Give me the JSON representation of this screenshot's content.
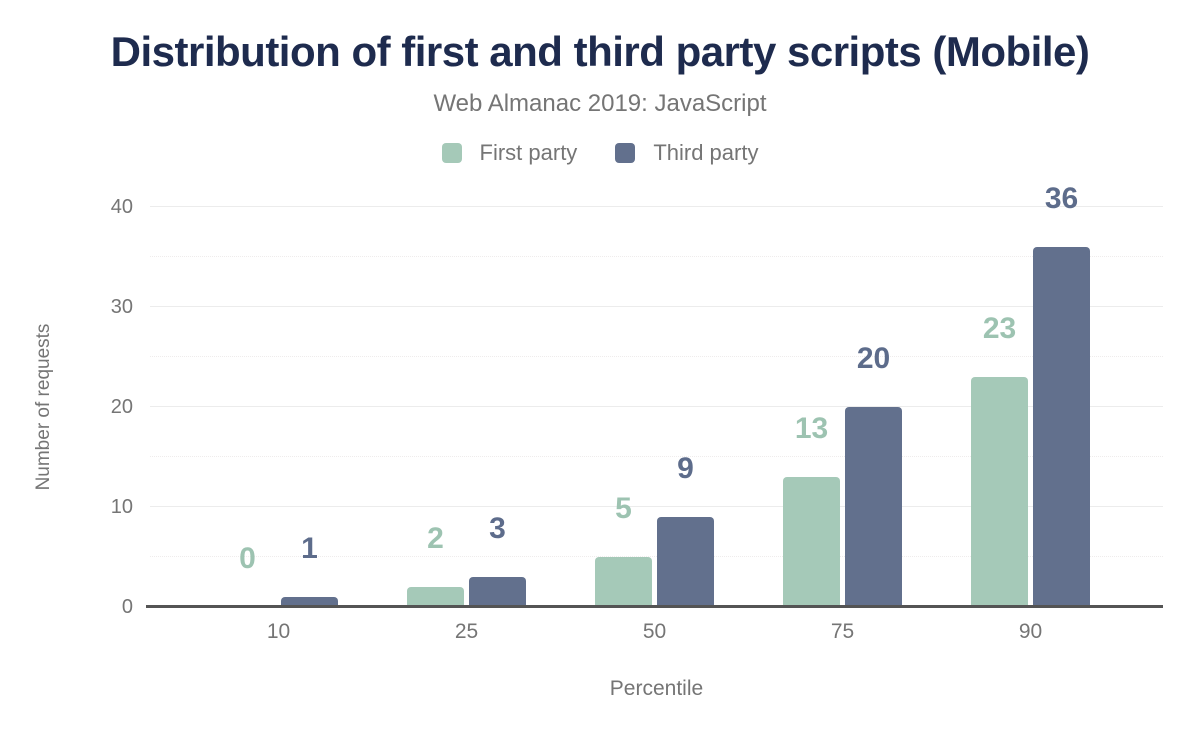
{
  "chart_data": {
    "type": "bar",
    "title": "Distribution of first and third party scripts (Mobile)",
    "subtitle": "Web Almanac 2019: JavaScript",
    "categories": [
      "10",
      "25",
      "50",
      "75",
      "90"
    ],
    "series": [
      {
        "name": "First party",
        "values": [
          0,
          2,
          5,
          13,
          23
        ],
        "color": "#a5c9b8",
        "label_color": "#9dc3b1"
      },
      {
        "name": "Third party",
        "values": [
          1,
          3,
          9,
          20,
          36
        ],
        "color": "#62708d",
        "label_color": "#5d6c8b"
      }
    ],
    "xlabel": "Percentile",
    "ylabel": "Number of requests",
    "ylim": [
      0,
      40
    ],
    "yticks": [
      0,
      10,
      20,
      30,
      40
    ],
    "minor_gridlines": [
      5,
      15,
      25,
      35
    ],
    "grid": true,
    "legend_position": "top",
    "value_labels": true
  },
  "colors": {
    "title": "#1e2b4e",
    "text_gray": "#757575",
    "grid_major": "#ececec",
    "grid_minor": "#efecec",
    "axis_line": "#545454",
    "background": "#ffffff"
  }
}
